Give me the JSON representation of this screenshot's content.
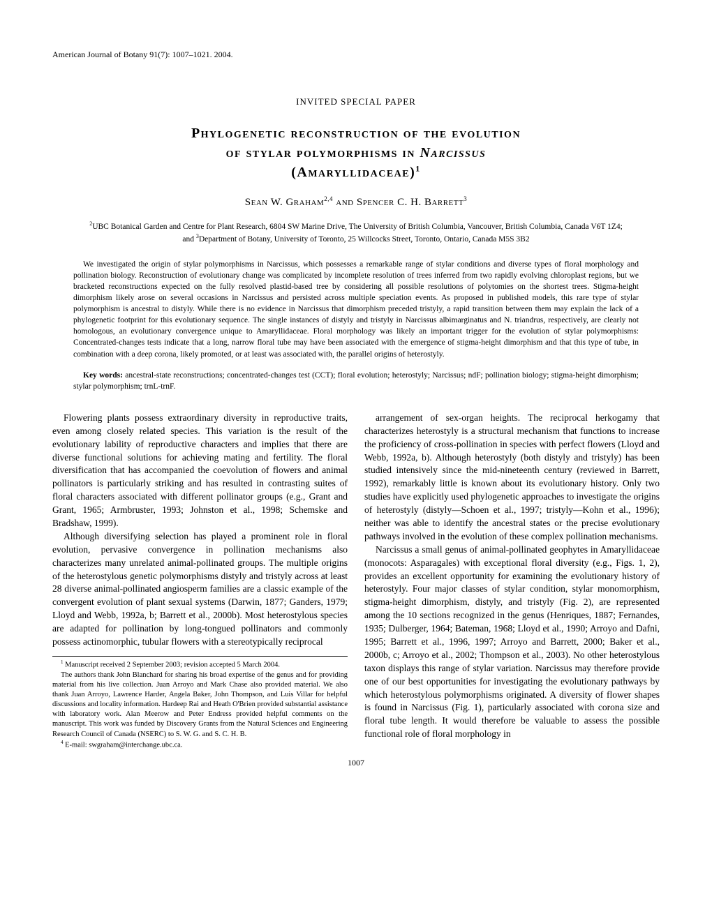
{
  "journal_header": "American Journal of Botany 91(7): 1007–1021. 2004.",
  "invited_label": "INVITED SPECIAL PAPER",
  "title_line1": "Phylogenetic reconstruction of the evolution",
  "title_line2": "of stylar polymorphisms in ",
  "title_genus": "Narcissus",
  "title_line3": "(Amaryllidaceae)",
  "title_sup": "1",
  "authors_pre": "Sean W. Graham",
  "authors_sup1": "2,4",
  "authors_mid": " and Spencer C. H. Barrett",
  "authors_sup2": "3",
  "affil_sup1": "2",
  "affil_text1": "UBC Botanical Garden and Centre for Plant Research, 6804 SW Marine Drive, The University of British Columbia, Vancouver, British Columbia, Canada V6T 1Z4; and ",
  "affil_sup2": "3",
  "affil_text2": "Department of Botany, University of Toronto, 25 Willcocks Street, Toronto, Ontario, Canada M5S 3B2",
  "abstract_text": "We investigated the origin of stylar polymorphisms in Narcissus, which possesses a remarkable range of stylar conditions and diverse types of floral morphology and pollination biology. Reconstruction of evolutionary change was complicated by incomplete resolution of trees inferred from two rapidly evolving chloroplast regions, but we bracketed reconstructions expected on the fully resolved plastid-based tree by considering all possible resolutions of polytomies on the shortest trees. Stigma-height dimorphism likely arose on several occasions in Narcissus and persisted across multiple speciation events. As proposed in published models, this rare type of stylar polymorphism is ancestral to distyly. While there is no evidence in Narcissus that dimorphism preceded tristyly, a rapid transition between them may explain the lack of a phylogenetic footprint for this evolutionary sequence. The single instances of distyly and tristyly in Narcissus albimarginatus and N. triandrus, respectively, are clearly not homologous, an evolutionary convergence unique to Amaryllidaceae. Floral morphology was likely an important trigger for the evolution of stylar polymorphisms: Concentrated-changes tests indicate that a long, narrow floral tube may have been associated with the emergence of stigma-height dimorphism and that this type of tube, in combination with a deep corona, likely promoted, or at least was associated with, the parallel origins of heterostyly.",
  "keywords_label": "Key words:",
  "keywords_text": "   ancestral-state reconstructions; concentrated-changes test (CCT); floral evolution; heterostyly; Narcissus; ndF; pollination biology; stigma-height dimorphism; stylar polymorphism; trnL-trnF.",
  "body_p1": "Flowering plants possess extraordinary diversity in reproductive traits, even among closely related species. This variation is the result of the evolutionary lability of reproductive characters and implies that there are diverse functional solutions for achieving mating and fertility. The floral diversification that has accompanied the coevolution of flowers and animal pollinators is particularly striking and has resulted in contrasting suites of floral characters associated with different pollinator groups (e.g., Grant and Grant, 1965; Armbruster, 1993; Johnston et al., 1998; Schemske and Bradshaw, 1999).",
  "body_p2": "Although diversifying selection has played a prominent role in floral evolution, pervasive convergence in pollination mechanisms also characterizes many unrelated animal-pollinated groups. The multiple origins of the heterostylous genetic polymorphisms distyly and tristyly across at least 28 diverse animal-pollinated angiosperm families are a classic example of the convergent evolution of plant sexual systems (Darwin, 1877; Ganders, 1979; Lloyd and Webb, 1992a, b; Barrett et al., 2000b). Most heterostylous species are adapted for pollination by long-tongued pollinators and commonly possess actinomorphic, tubular flowers with a stereotypically reciprocal",
  "body_p3": "arrangement of sex-organ heights. The reciprocal herkogamy that characterizes heterostyly is a structural mechanism that functions to increase the proficiency of cross-pollination in species with perfect flowers (Lloyd and Webb, 1992a, b). Although heterostyly (both distyly and tristyly) has been studied intensively since the mid-nineteenth century (reviewed in Barrett, 1992), remarkably little is known about its evolutionary history. Only two studies have explicitly used phylogenetic approaches to investigate the origins of heterostyly (distyly—Schoen et al., 1997; tristyly—Kohn et al., 1996); neither was able to identify the ancestral states or the precise evolutionary pathways involved in the evolution of these complex pollination mechanisms.",
  "body_p4": "Narcissus a small genus of animal-pollinated geophytes in Amaryllidaceae (monocots: Asparagales) with exceptional floral diversity (e.g., Figs. 1, 2), provides an excellent opportunity for examining the evolutionary history of heterostyly. Four major classes of stylar condition, stylar monomorphism, stigma-height dimorphism, distyly, and tristyly (Fig. 2), are represented among the 10 sections recognized in the genus (Henriques, 1887; Fernandes, 1935; Dulberger, 1964; Bateman, 1968; Lloyd et al., 1990; Arroyo and Dafni, 1995; Barrett et al., 1996, 1997; Arroyo and Barrett, 2000; Baker et al., 2000b, c; Arroyo et al., 2002; Thompson et al., 2003). No other heterostylous taxon displays this range of stylar variation. Narcissus may therefore provide one of our best opportunities for investigating the evolutionary pathways by which heterostylous polymorphisms originated. A diversity of flower shapes is found in Narcissus (Fig. 1), particularly associated with corona size and floral tube length. It would therefore be valuable to assess the possible functional role of floral morphology in",
  "fn1_sup": "1",
  "fn1_text": " Manuscript received 2 September 2003; revision accepted 5 March 2004.",
  "fn_ack": "The authors thank John Blanchard for sharing his broad expertise of the genus and for providing material from his live collection. Juan Arroyo and Mark Chase also provided material. We also thank Juan Arroyo, Lawrence Harder, Angela Baker, John Thompson, and Luis Villar for helpful discussions and locality information. Hardeep Rai and Heath O'Brien provided substantial assistance with laboratory work. Alan Meerow and Peter Endress provided helpful comments on the manuscript. This work was funded by Discovery Grants from the Natural Sciences and Engineering Research Council of Canada (NSERC) to S. W. G. and S. C. H. B.",
  "fn4_sup": "4",
  "fn4_text": " E-mail: swgraham@interchange.ubc.ca.",
  "page_number": "1007"
}
